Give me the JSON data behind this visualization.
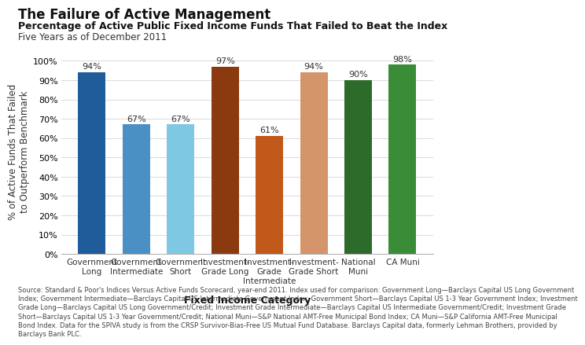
{
  "title": "The Failure of Active Management",
  "subtitle": "Percentage of Active Public Fixed Income Funds That Failed to Beat the Index",
  "subtitle2": "Five Years as of December 2011",
  "xlabel": "Fixed Income Category",
  "ylabel": "% of Active Funds That Failed\nto Outperform Benchmark",
  "categories": [
    "Government\nLong",
    "Government\nIntermediate",
    "Government\nShort",
    "Investment-\nGrade Long",
    "Investment-\nGrade\nIntermediate",
    "Investment-\nGrade Short",
    "National\nMuni",
    "CA Muni"
  ],
  "values": [
    94,
    67,
    67,
    97,
    61,
    94,
    90,
    98
  ],
  "bar_colors": [
    "#1F5C99",
    "#4A90C4",
    "#7EC8E3",
    "#8B3A0F",
    "#C0591A",
    "#D4956A",
    "#2D6B2A",
    "#3A8C36"
  ],
  "yticks": [
    0,
    10,
    20,
    30,
    40,
    50,
    60,
    70,
    80,
    90,
    100
  ],
  "ylim": [
    0,
    106
  ],
  "source_text": "Source: Standard & Poor's Indices Versus Active Funds Scorecard, year-end 2011. Index used for comparison: Government Long—Barclays Capital US Long Government\nIndex; Government Intermediate—Barclays Capital US Intermediate Government Index; Government Short—Barclays Capital US 1-3 Year Government Index; Investment\nGrade Long—Barclays Capital US Long Government/Credit; Investment Grade Intermediate—Barclays Capital US Intermediate Government/Credit; Investment Grade\nShort—Barclays Capital US 1-3 Year Government/Credit; National Muni—S&P National AMT-Free Municipal Bond Index; CA Muni—S&P California AMT-Free Municipal\nBond Index. Data for the SPIVA study is from the CRSP Survivor-Bias-Free US Mutual Fund Database. Barclays Capital data, formerly Lehman Brothers, provided by\nBarclays Bank PLC.",
  "background_color": "#FFFFFF",
  "bar_width": 0.62,
  "label_fontsize": 7.5,
  "value_label_fontsize": 8,
  "title_fontsize": 12,
  "subtitle_fontsize": 9,
  "subtitle2_fontsize": 8.5,
  "axis_label_fontsize": 8.5,
  "tick_fontsize": 8,
  "source_fontsize": 6.0
}
